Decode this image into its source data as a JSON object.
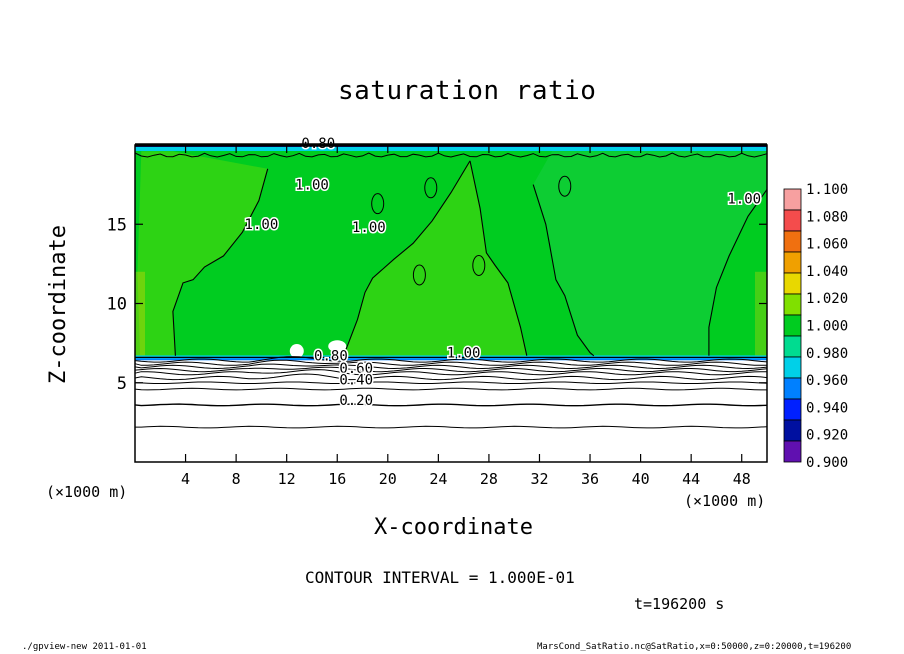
{
  "chart_data": {
    "type": "heatmap",
    "title": "saturation ratio",
    "xlabel": "X-coordinate",
    "ylabel": "Z-coordinate",
    "x_unit": "(×1000 m)",
    "x_ticks": [
      4,
      8,
      12,
      16,
      20,
      24,
      28,
      32,
      36,
      40,
      44,
      48
    ],
    "y_ticks": [
      5,
      10,
      15
    ],
    "xlim": [
      0,
      50
    ],
    "ylim": [
      0,
      20
    ],
    "contour_interval_text": "CONTOUR INTERVAL = 1.000E-01",
    "time_text": "t=196200 s",
    "colorbar": {
      "ticks": [
        "1.100",
        "1.080",
        "1.060",
        "1.040",
        "1.020",
        "1.000",
        "0.980",
        "0.960",
        "0.940",
        "0.920",
        "0.900"
      ],
      "colors": [
        "#f7a0a0",
        "#f44c4c",
        "#f07010",
        "#f0a000",
        "#e8d800",
        "#80e000",
        "#00cc20",
        "#00dc90",
        "#00d0e8",
        "#0080ff",
        "#0020ff",
        "#0010a0",
        "#6010b0"
      ]
    },
    "contour_labels": [
      {
        "text": "1.00",
        "x": 14,
        "y": 17.2
      },
      {
        "text": "1.00",
        "x": 10,
        "y": 14.7
      },
      {
        "text": "1.00",
        "x": 18.5,
        "y": 14.5
      },
      {
        "text": "1.00",
        "x": 48.2,
        "y": 16.3
      },
      {
        "text": "1.00",
        "x": 26,
        "y": 6.6
      },
      {
        "text": "0.80",
        "x": 15.5,
        "y": 6.4
      },
      {
        "text": "0.60",
        "x": 17.5,
        "y": 5.6
      },
      {
        "text": "0.40",
        "x": 17.5,
        "y": 4.9
      },
      {
        "text": "0.20",
        "x": 17.5,
        "y": 3.6
      },
      {
        "text": "0.80",
        "x": 14.5,
        "y": 19.8
      }
    ],
    "lower_contours_z": [
      6.4,
      6.2,
      6.0,
      5.8,
      5.6,
      5.3,
      5.0,
      4.6,
      3.6,
      2.2
    ],
    "cloud_base_z": 6.6,
    "column_boundaries": [
      {
        "x": [
          3.2,
          3.0,
          3.8,
          4.6,
          5.5,
          7.0,
          8.5,
          9.8,
          10.5
        ],
        "z": [
          6.7,
          9.5,
          11.3,
          11.5,
          12.3,
          13.0,
          14.5,
          16.5,
          18.5
        ]
      },
      {
        "x": [
          16.5,
          17.6,
          18.2,
          18.8,
          20.5,
          22.0,
          23.5,
          25.0,
          26.5
        ],
        "z": [
          6.7,
          9.0,
          10.7,
          11.6,
          12.8,
          13.8,
          15.2,
          17.0,
          19.0
        ]
      },
      {
        "x": [
          26.5,
          27.3,
          27.8,
          28.5,
          29.5,
          30.5,
          31.0
        ],
        "z": [
          19.0,
          16.0,
          13.2,
          12.4,
          11.3,
          8.5,
          6.7
        ]
      },
      {
        "x": [
          31.5,
          32.5,
          32.8,
          33.3,
          34.0,
          35.0,
          36.0,
          36.3
        ],
        "z": [
          17.5,
          15.0,
          13.7,
          11.5,
          10.5,
          8.0,
          6.9,
          6.7
        ]
      },
      {
        "x": [
          45.4,
          45.4,
          46.0,
          47.0,
          48.5,
          50.0
        ],
        "z": [
          6.7,
          8.5,
          11.0,
          13.0,
          15.5,
          17.2
        ]
      }
    ],
    "footer_left": "./gpview-new   2011-01-01",
    "footer_right": "MarsCond_SatRatio.nc@SatRatio,x=0:50000,z=0:20000,t=196200"
  }
}
